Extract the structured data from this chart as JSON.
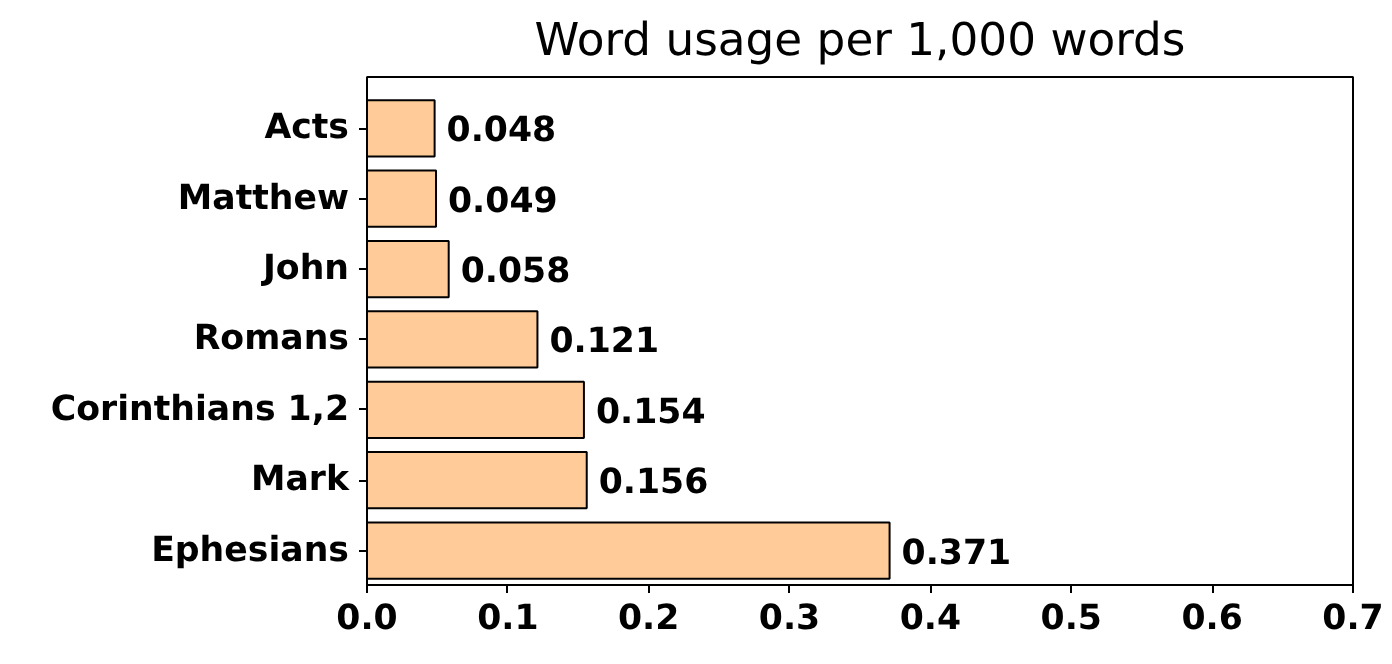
{
  "chart_data": {
    "type": "bar",
    "orientation": "horizontal",
    "title": "Word usage per 1,000 words",
    "categories": [
      "Acts",
      "Matthew",
      "John",
      "Romans",
      "Corinthians 1,2",
      "Mark",
      "Ephesians"
    ],
    "values": [
      0.048,
      0.049,
      0.058,
      0.121,
      0.154,
      0.156,
      0.371
    ],
    "color": "#ffcc99",
    "xlim": [
      0,
      0.7
    ],
    "xticks": [
      {
        "value": 0,
        "label": "0.0"
      },
      0.1,
      0.2,
      0.3,
      0.4,
      0.5,
      0.6,
      0.7
    ],
    "data_labels": true,
    "grid": false
  }
}
